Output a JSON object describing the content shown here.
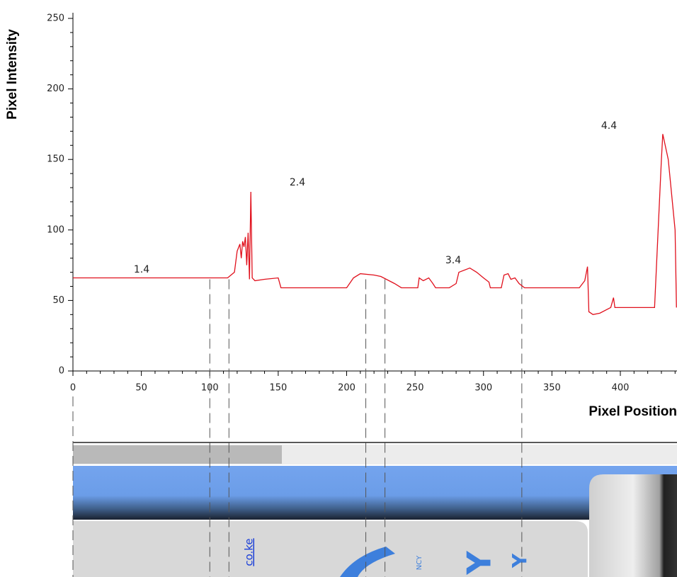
{
  "chart_data": {
    "type": "line",
    "xlabel": "Pixel Position",
    "ylabel": "Pixel Intensity",
    "xlim": [
      0,
      441
    ],
    "ylim": [
      0,
      250
    ],
    "xticks": [
      0,
      50,
      100,
      150,
      200,
      250,
      300,
      350,
      400
    ],
    "yticks": [
      0,
      50,
      100,
      150,
      200,
      250
    ],
    "annotations": [
      "1.4",
      "2.4",
      "3.4",
      "4.4"
    ],
    "vlines": [
      100,
      114,
      214,
      228,
      328
    ],
    "series": [
      {
        "color": "#e0101c",
        "x": [
          0,
          113,
          118,
          120,
          122,
          123,
          124,
          125,
          126,
          127,
          128,
          129,
          130,
          131,
          133,
          140,
          150,
          152,
          200,
          205,
          210,
          220,
          225,
          235,
          240,
          252,
          253,
          256,
          260,
          263,
          265,
          275,
          280,
          282,
          290,
          295,
          300,
          304,
          305,
          313,
          315,
          318,
          320,
          323,
          326,
          330,
          370,
          374,
          376,
          377,
          380,
          385,
          393,
          395,
          396,
          400,
          425,
          430,
          431,
          435,
          440,
          441
        ],
        "values": [
          66,
          66,
          70,
          85,
          90,
          80,
          92,
          88,
          95,
          75,
          98,
          65,
          127,
          66,
          64,
          65,
          66,
          59,
          59,
          66,
          69,
          68,
          67,
          62,
          59,
          59,
          66,
          64,
          66,
          62,
          59,
          59,
          62,
          70,
          73,
          70,
          66,
          63,
          59,
          59,
          68,
          69,
          65,
          66,
          62,
          59,
          59,
          64,
          74,
          42,
          40,
          41,
          45,
          52,
          45,
          45,
          45,
          150,
          168,
          150,
          100,
          45
        ]
      }
    ]
  },
  "screenshot": {
    "link": "co.ke",
    "small_text": "NCY",
    "letters": [
      "Y",
      "Y"
    ]
  }
}
